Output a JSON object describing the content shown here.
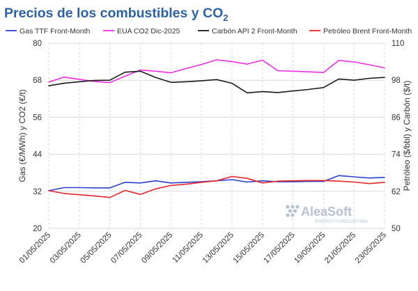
{
  "chart_data": {
    "type": "line",
    "title": "Precios de los combustibles y CO",
    "title_sub": "2",
    "ylabel_left": "Gas (€/MWh) y CO2 (€/t)",
    "ylabel_right": "Petróleo ($/bbl) y Carbón ($/t)",
    "ylim_left": [
      20,
      80
    ],
    "ylim_right": [
      50,
      110
    ],
    "yticks_left": [
      "20",
      "32",
      "44",
      "56",
      "68",
      "80"
    ],
    "yticks_right": [
      "50",
      "62",
      "74",
      "86",
      "98",
      "110"
    ],
    "yticks_left_values": [
      20,
      32,
      44,
      56,
      68,
      80
    ],
    "yticks_right_values": [
      50,
      62,
      74,
      86,
      98,
      110
    ],
    "x": [
      "01/05/2025",
      "02/05/2025",
      "03/05/2025",
      "04/05/2025",
      "05/05/2025",
      "06/05/2025",
      "07/05/2025",
      "08/05/2025",
      "09/05/2025",
      "10/05/2025",
      "11/05/2025",
      "12/05/2025",
      "13/05/2025",
      "14/05/2025",
      "15/05/2025",
      "16/05/2025",
      "17/05/2025",
      "18/05/2025",
      "19/05/2025",
      "20/05/2025",
      "21/05/2025",
      "22/05/2025",
      "23/05/2025"
    ],
    "x_tick_labels": [
      "01/05/2025",
      "03/05/2025",
      "05/05/2025",
      "07/05/2025",
      "09/05/2025",
      "11/05/2025",
      "13/05/2025",
      "15/05/2025",
      "17/05/2025",
      "19/05/2025",
      "21/05/2025",
      "23/05/2025"
    ],
    "grid": true,
    "legend_position": "top",
    "series": [
      {
        "name": "Gas TTF Front-Month",
        "axis": "left",
        "color": "#2b3fd1",
        "values": [
          32.2,
          33.2,
          33.2,
          33.1,
          33.1,
          34.9,
          34.7,
          35.4,
          34.7,
          34.9,
          35.1,
          35.4,
          35.8,
          35.0,
          35.4,
          35.1,
          35.1,
          35.2,
          35.2,
          37.1,
          36.7,
          36.3,
          36.5
        ]
      },
      {
        "name": "EUA CO2 Dic-2025",
        "axis": "left",
        "color": "#ee2ee6",
        "values": [
          67.4,
          69.0,
          68.3,
          67.6,
          67.2,
          69.3,
          71.3,
          70.9,
          70.4,
          71.8,
          73.1,
          74.6,
          74.0,
          73.2,
          74.5,
          71.1,
          70.9,
          70.7,
          70.5,
          74.4,
          73.9,
          73.0,
          72.0
        ]
      },
      {
        "name": "Carbón API 2 Front-Month",
        "axis": "right",
        "color": "#1a1a1a",
        "values": [
          96.2,
          97.0,
          97.5,
          97.9,
          98.0,
          100.6,
          100.9,
          98.9,
          97.3,
          97.5,
          97.8,
          98.2,
          97.0,
          93.9,
          94.3,
          94.0,
          94.5,
          95.0,
          95.6,
          98.4,
          98.0,
          98.6,
          98.9
        ]
      },
      {
        "name": "Petróleo Brent Front-Month",
        "axis": "right",
        "color": "#e8262a",
        "values": [
          62.2,
          61.3,
          60.9,
          60.5,
          60.0,
          62.3,
          61.0,
          62.8,
          63.9,
          64.3,
          64.9,
          65.4,
          66.8,
          66.2,
          64.7,
          65.3,
          65.4,
          65.5,
          65.5,
          65.3,
          65.0,
          64.5,
          64.9
        ]
      }
    ]
  },
  "watermark": {
    "brand": "AleaSoft",
    "sub": "ENERGY FORECASTING"
  },
  "colors": {
    "title": "#2e62a8",
    "watermark": "#b7c3d4"
  }
}
